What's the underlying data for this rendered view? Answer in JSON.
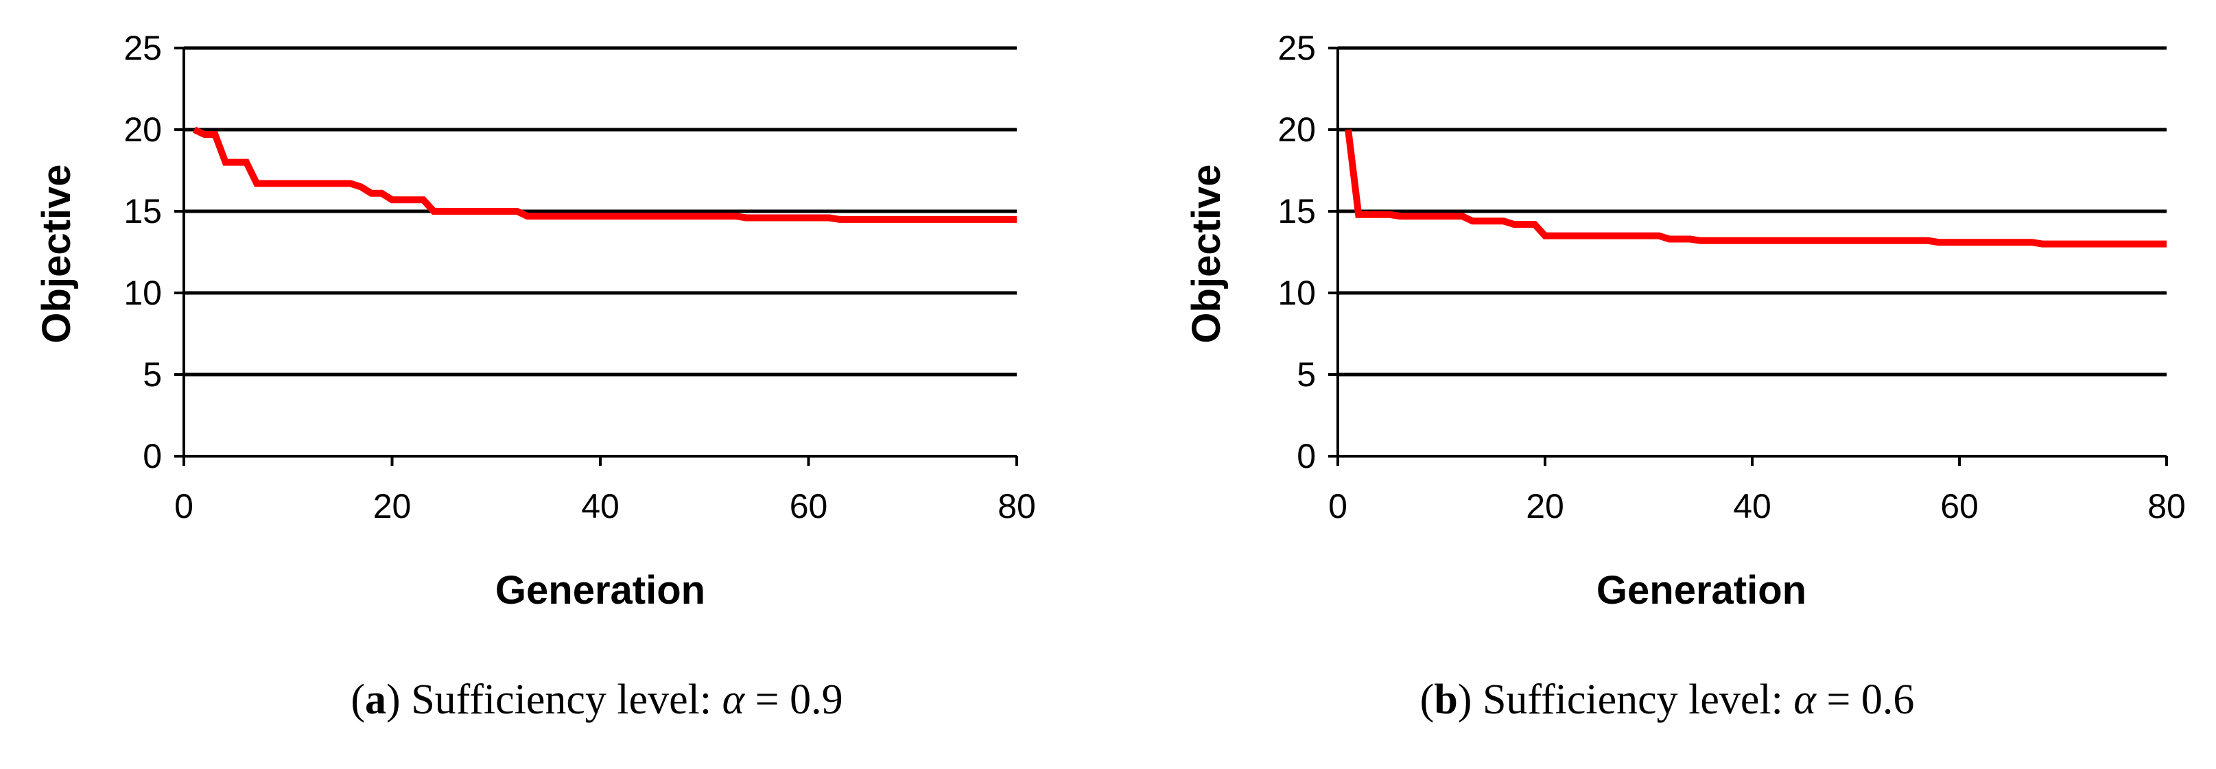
{
  "chart_data": [
    {
      "type": "line",
      "caption": {
        "open_paren": "(",
        "letter": "a",
        "text": ") Sufficiency level: ",
        "symbol": "α",
        "relation": " = ",
        "value": "0.9"
      },
      "xlabel": "Generation",
      "ylabel": "Objective",
      "xlim": [
        0,
        80
      ],
      "ylim": [
        0,
        25
      ],
      "x_ticks": [
        "0",
        "20",
        "40",
        "60",
        "80"
      ],
      "y_ticks": [
        "0",
        "5",
        "10",
        "15",
        "20",
        "25"
      ],
      "grid": "horizontal",
      "color": "#ff0000",
      "series": [
        {
          "x": [
            1,
            2,
            3,
            4,
            6,
            7,
            16,
            17,
            18,
            19,
            20,
            23,
            24,
            32,
            33,
            53,
            54,
            62,
            63,
            80
          ],
          "y": [
            20,
            19.7,
            19.7,
            18.0,
            18.0,
            16.7,
            16.7,
            16.5,
            16.1,
            16.1,
            15.7,
            15.7,
            15.0,
            15.0,
            14.7,
            14.7,
            14.6,
            14.6,
            14.5,
            14.5
          ]
        }
      ]
    },
    {
      "type": "line",
      "caption": {
        "open_paren": "(",
        "letter": "b",
        "text": ") Sufficiency level: ",
        "symbol": "α",
        "relation": " = ",
        "value": "0.6"
      },
      "xlabel": "Generation",
      "ylabel": "Objective",
      "xlim": [
        0,
        80
      ],
      "ylim": [
        0,
        25
      ],
      "x_ticks": [
        "0",
        "20",
        "40",
        "60",
        "80"
      ],
      "y_ticks": [
        "0",
        "5",
        "10",
        "15",
        "20",
        "25"
      ],
      "grid": "horizontal",
      "color": "#ff0000",
      "series": [
        {
          "x": [
            1,
            2,
            5,
            6,
            12,
            13,
            16,
            17,
            19,
            20,
            31,
            32,
            34,
            35,
            57,
            58,
            67,
            68,
            80
          ],
          "y": [
            20,
            14.8,
            14.8,
            14.7,
            14.7,
            14.4,
            14.4,
            14.2,
            14.2,
            13.5,
            13.5,
            13.3,
            13.3,
            13.2,
            13.2,
            13.1,
            13.1,
            13.0,
            13.0
          ]
        }
      ]
    }
  ]
}
